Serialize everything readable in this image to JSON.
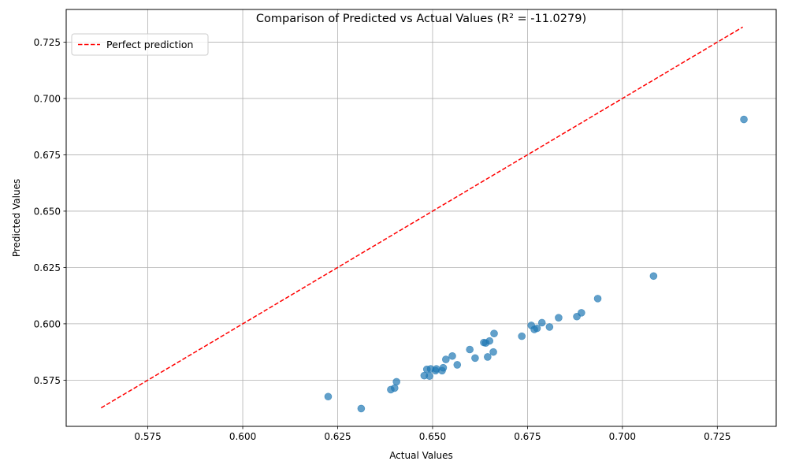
{
  "chart_data": {
    "type": "scatter",
    "title": "Comparison of Predicted vs Actual Values (R² = -11.0279)",
    "xlabel": "Actual Values",
    "ylabel": "Predicted Values",
    "xlim": [
      0.5535,
      0.7405
    ],
    "ylim": [
      0.5545,
      0.7395
    ],
    "xticks": [
      "0.575",
      "0.600",
      "0.625",
      "0.650",
      "0.675",
      "0.700",
      "0.725"
    ],
    "yticks": [
      "0.575",
      "0.600",
      "0.625",
      "0.650",
      "0.675",
      "0.700",
      "0.725"
    ],
    "grid": true,
    "legend": {
      "position": "top-left",
      "entries": [
        "Perfect prediction"
      ]
    },
    "reference_line": {
      "name": "Perfect prediction",
      "style": "dashed",
      "color": "#ff0000",
      "from": [
        0.5627,
        0.5627
      ],
      "to": [
        0.7317,
        0.7317
      ]
    },
    "points_color": "#1f77b4",
    "points": [
      [
        0.6225,
        0.5677
      ],
      [
        0.6312,
        0.5624
      ],
      [
        0.639,
        0.5708
      ],
      [
        0.64,
        0.5715
      ],
      [
        0.6405,
        0.5743
      ],
      [
        0.6478,
        0.577
      ],
      [
        0.6485,
        0.5798
      ],
      [
        0.6492,
        0.5768
      ],
      [
        0.6495,
        0.58
      ],
      [
        0.6508,
        0.5792
      ],
      [
        0.651,
        0.58
      ],
      [
        0.6525,
        0.5792
      ],
      [
        0.6528,
        0.5805
      ],
      [
        0.6535,
        0.5842
      ],
      [
        0.6552,
        0.5857
      ],
      [
        0.6565,
        0.5818
      ],
      [
        0.6598,
        0.5886
      ],
      [
        0.6612,
        0.5848
      ],
      [
        0.6635,
        0.5917
      ],
      [
        0.664,
        0.5915
      ],
      [
        0.6645,
        0.5853
      ],
      [
        0.665,
        0.5924
      ],
      [
        0.666,
        0.5875
      ],
      [
        0.6662,
        0.5957
      ],
      [
        0.6735,
        0.5945
      ],
      [
        0.676,
        0.5993
      ],
      [
        0.6768,
        0.5975
      ],
      [
        0.6775,
        0.598
      ],
      [
        0.6788,
        0.6005
      ],
      [
        0.6808,
        0.5986
      ],
      [
        0.6832,
        0.6027
      ],
      [
        0.688,
        0.6032
      ],
      [
        0.6892,
        0.6049
      ],
      [
        0.6935,
        0.6112
      ],
      [
        0.7082,
        0.6212
      ],
      [
        0.732,
        0.6907
      ]
    ]
  }
}
